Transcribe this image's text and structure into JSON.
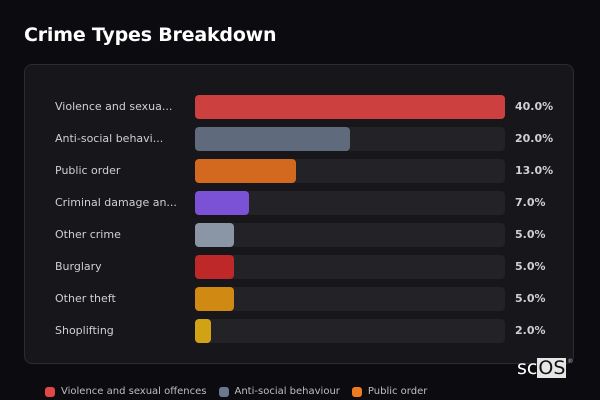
{
  "title": "Crime Types Breakdown",
  "chart_data": {
    "type": "bar",
    "orientation": "horizontal",
    "title": "Crime Types Breakdown",
    "categories": [
      "Violence and sexual offences",
      "Anti-social behaviour",
      "Public order",
      "Criminal damage and arson",
      "Other crime",
      "Burglary",
      "Other theft",
      "Shoplifting"
    ],
    "display_labels": [
      "Violence and sexua...",
      "Anti-social behavi...",
      "Public order",
      "Criminal damage an...",
      "Other crime",
      "Burglary",
      "Other theft",
      "Shoplifting"
    ],
    "values": [
      40.0,
      20.0,
      13.0,
      7.0,
      5.0,
      5.0,
      5.0,
      2.0
    ],
    "value_labels": [
      "40.0%",
      "20.0%",
      "13.0%",
      "7.0%",
      "5.0%",
      "5.0%",
      "5.0%",
      "2.0%"
    ],
    "colors": [
      "#cc4040",
      "#5f6b7d",
      "#d2691e",
      "#7b52d6",
      "#8a96a6",
      "#be2828",
      "#d08a14",
      "#d0a214"
    ],
    "xlim": [
      0,
      40
    ],
    "unit": "%",
    "grid": false,
    "legend_position": "bottom"
  },
  "legend": [
    {
      "label": "Violence and sexual offences",
      "color": "#e04848"
    },
    {
      "label": "Anti-social behaviour",
      "color": "#6b7890"
    },
    {
      "label": "Public order",
      "color": "#f07a20"
    }
  ],
  "logo": {
    "part1": "sc",
    "part2": "OS",
    "reg": "®"
  }
}
